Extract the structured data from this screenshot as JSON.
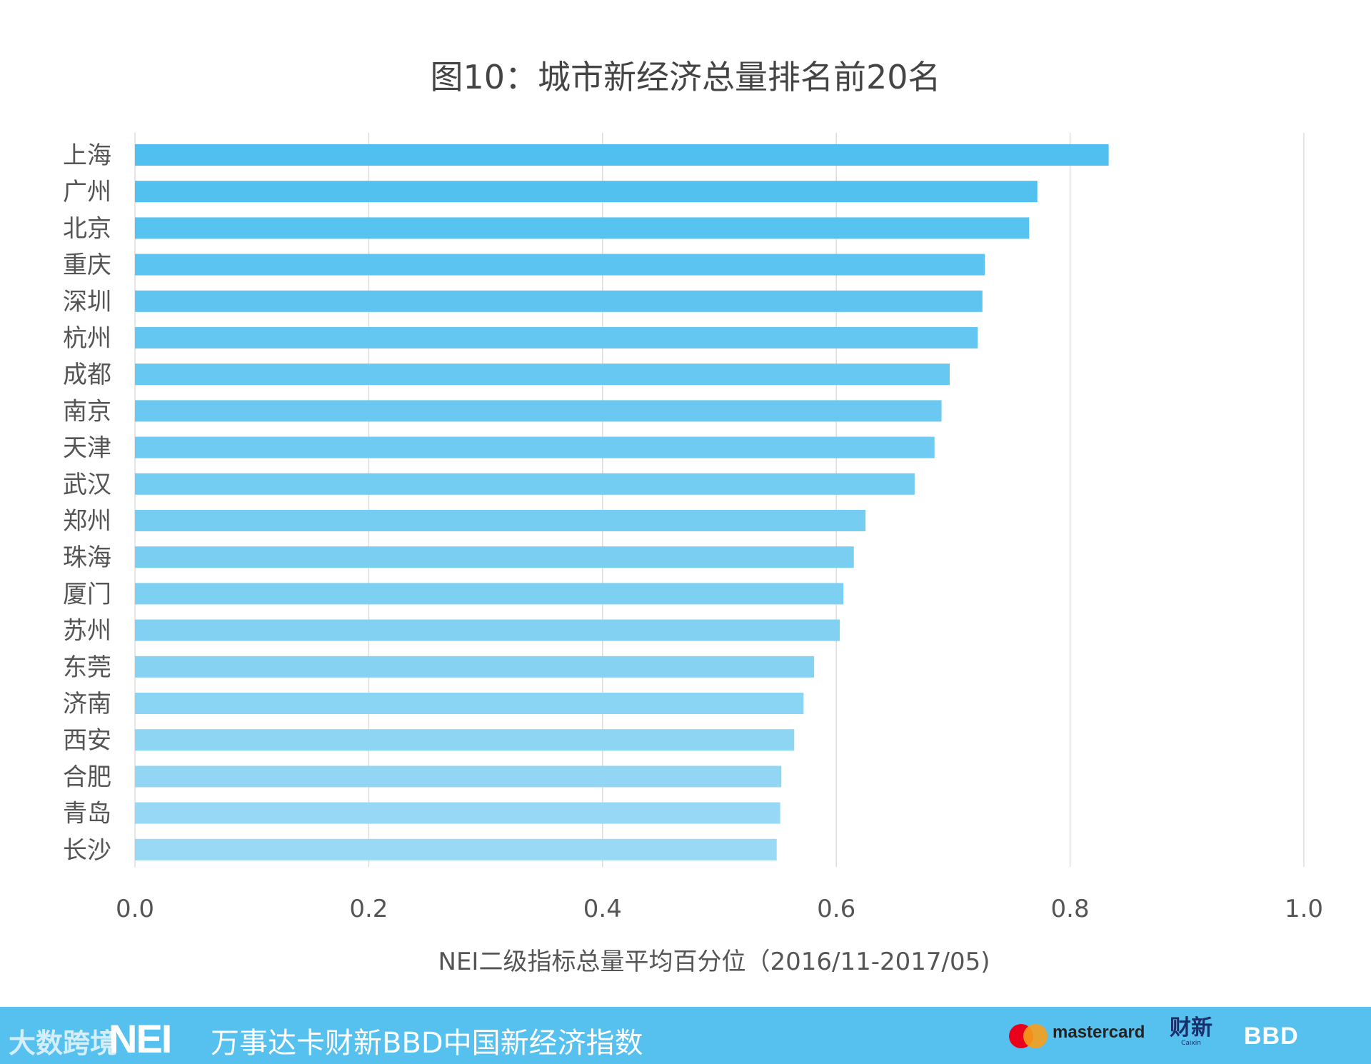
{
  "chart_data": {
    "type": "bar",
    "orientation": "horizontal",
    "title": "图10：城市新经济总量排名前20名",
    "xlabel": "NEI二级指标总量平均百分位（2016/11-2017/05)",
    "ylabel": "",
    "xlim": [
      0.0,
      1.0
    ],
    "xticks": [
      "0.0",
      "0.2",
      "0.4",
      "0.6",
      "0.8",
      "1.0"
    ],
    "xtick_values": [
      0.0,
      0.2,
      0.4,
      0.6,
      0.8,
      1.0
    ],
    "grid": true,
    "categories": [
      "上海",
      "广州",
      "北京",
      "重庆",
      "深圳",
      "杭州",
      "成都",
      "南京",
      "天津",
      "武汉",
      "郑州",
      "珠海",
      "厦门",
      "苏州",
      "东莞",
      "济南",
      "西安",
      "合肥",
      "青岛",
      "长沙"
    ],
    "values": [
      0.833,
      0.772,
      0.765,
      0.727,
      0.725,
      0.721,
      0.697,
      0.69,
      0.684,
      0.667,
      0.625,
      0.615,
      0.606,
      0.603,
      0.581,
      0.572,
      0.564,
      0.553,
      0.552,
      0.549
    ],
    "colors": {
      "top": "#4fc0ef",
      "bottom": "#9ad9f5",
      "grid": "#dddddd",
      "tick_text": "#555555",
      "category_text": "#555555"
    }
  },
  "footer": {
    "logo": "NEI",
    "title": "万事达卡财新BBD中国新经济指数",
    "watermark": "大数跨境",
    "mastercard": "mastercard",
    "caixin_cn": "财新",
    "caixin_en": "Caixin",
    "bbd": "BBD",
    "background": "#56c0ee"
  }
}
